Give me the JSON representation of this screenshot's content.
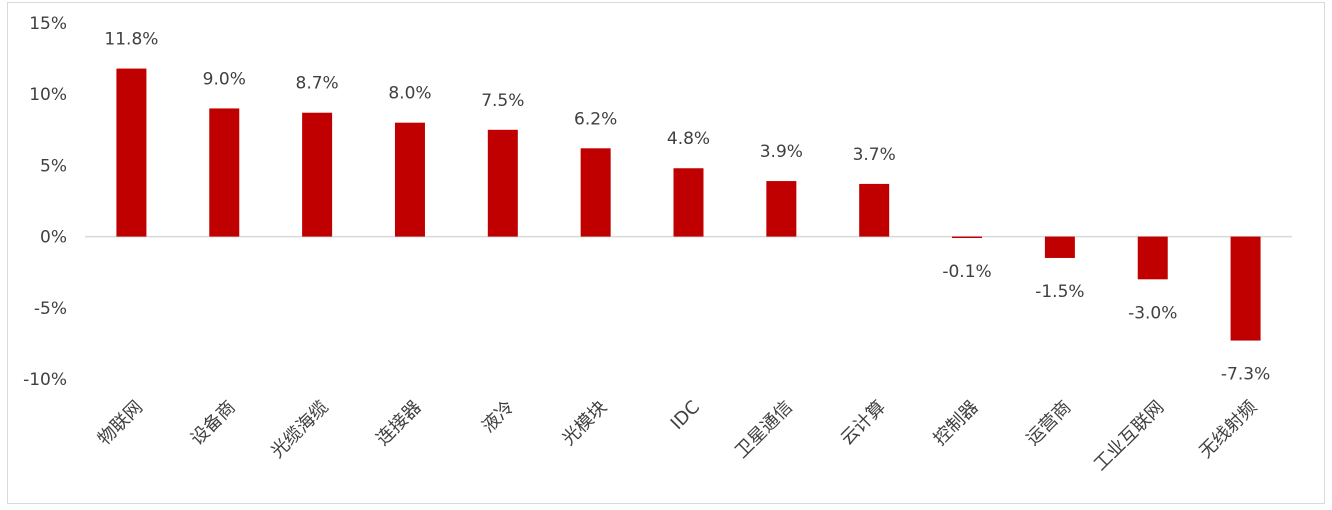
{
  "chart_data": {
    "type": "bar",
    "categories": [
      "物联网",
      "设备商",
      "光缆海缆",
      "连接器",
      "液冷",
      "光模块",
      "IDC",
      "卫星通信",
      "云计算",
      "控制器",
      "运营商",
      "工业互联网",
      "无线射频"
    ],
    "values": [
      11.8,
      9.0,
      8.7,
      8.0,
      7.5,
      6.2,
      4.8,
      3.9,
      3.7,
      -0.1,
      -1.5,
      -3.0,
      -7.3
    ],
    "value_labels": [
      "11.8%",
      "9.0%",
      "8.7%",
      "8.0%",
      "7.5%",
      "6.2%",
      "4.8%",
      "3.9%",
      "3.7%",
      "-0.1%",
      "-1.5%",
      "-3.0%",
      "-7.3%"
    ],
    "y_ticks": [
      15,
      10,
      5,
      0,
      -5,
      -10
    ],
    "y_tick_labels": [
      "15%",
      "10%",
      "5%",
      "0%",
      "-5%",
      "-10%"
    ],
    "ylim": [
      -10,
      15
    ],
    "bar_color": "#c00000",
    "axis_color": "#d9d9d9",
    "text_color": "#404040",
    "grid": false,
    "legend": "none",
    "title": "",
    "xlabel": "",
    "ylabel": ""
  }
}
